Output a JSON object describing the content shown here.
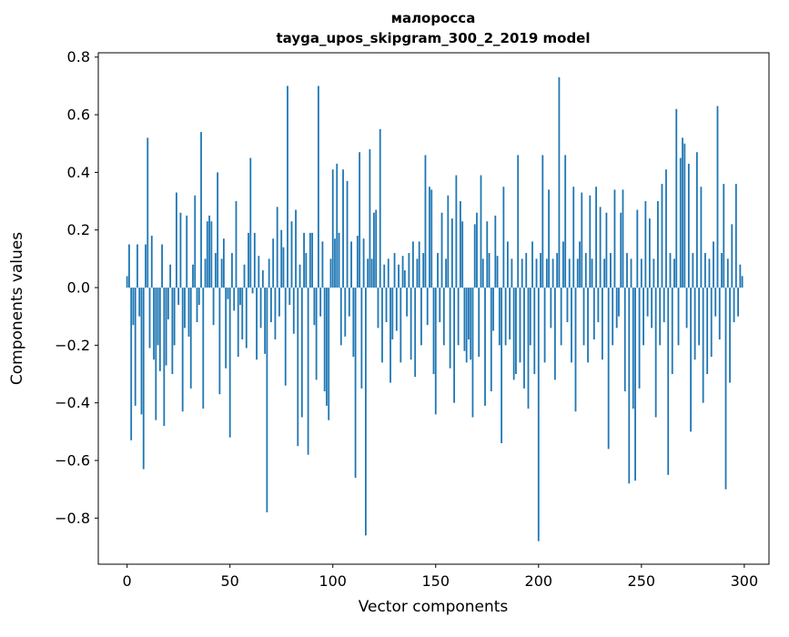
{
  "figure": {
    "title_line1": "малоросса",
    "title_line2": "tayga_upos_skipgram_300_2_2019 model",
    "bar_color": "#1f77b4",
    "spine_color": "#000000",
    "background_color": "#ffffff"
  },
  "chart_data": {
    "type": "bar",
    "title": "малоросса\ntayga_upos_skipgram_300_2_2019 model",
    "xlabel": "Vector components",
    "ylabel": "Components values",
    "grid": false,
    "legend": null,
    "xlim": [
      -14,
      312
    ],
    "ylim": [
      -0.96,
      0.815
    ],
    "x_ticks": [
      0,
      50,
      100,
      150,
      200,
      250,
      300
    ],
    "y_ticks": [
      -0.8,
      -0.6,
      -0.4,
      -0.2,
      0.0,
      0.2,
      0.4,
      0.6,
      0.8
    ],
    "values": [
      0.04,
      0.15,
      -0.53,
      -0.13,
      -0.41,
      0.15,
      -0.1,
      -0.44,
      -0.63,
      0.15,
      0.52,
      -0.21,
      0.18,
      -0.25,
      -0.46,
      -0.2,
      -0.29,
      0.15,
      -0.48,
      -0.27,
      -0.11,
      0.08,
      -0.3,
      -0.2,
      0.33,
      -0.06,
      0.26,
      -0.43,
      -0.14,
      0.25,
      -0.17,
      -0.35,
      0.08,
      0.32,
      -0.12,
      -0.06,
      0.54,
      -0.42,
      0.1,
      0.23,
      0.25,
      0.23,
      -0.13,
      0.12,
      0.4,
      -0.37,
      0.1,
      0.17,
      -0.28,
      -0.04,
      -0.52,
      0.12,
      -0.08,
      0.3,
      -0.24,
      -0.06,
      -0.18,
      0.08,
      -0.21,
      0.19,
      0.45,
      -0.02,
      0.19,
      -0.25,
      0.11,
      -0.14,
      0.06,
      -0.23,
      -0.78,
      0.1,
      -0.12,
      0.17,
      -0.18,
      0.28,
      -0.1,
      0.2,
      0.14,
      -0.34,
      0.7,
      -0.06,
      0.23,
      -0.16,
      0.27,
      -0.55,
      0.08,
      -0.45,
      0.19,
      0.12,
      -0.58,
      0.19,
      0.19,
      -0.13,
      -0.32,
      0.7,
      -0.1,
      0.16,
      -0.36,
      -0.41,
      -0.46,
      0.1,
      0.41,
      0.17,
      0.43,
      0.19,
      -0.2,
      0.41,
      -0.17,
      0.37,
      -0.1,
      0.16,
      -0.24,
      -0.66,
      0.18,
      0.47,
      -0.35,
      0.17,
      -0.86,
      0.1,
      0.48,
      0.1,
      0.26,
      0.27,
      -0.14,
      0.55,
      -0.26,
      0.08,
      -0.12,
      0.1,
      -0.33,
      -0.18,
      0.12,
      -0.15,
      0.08,
      -0.26,
      0.11,
      0.06,
      -0.1,
      0.12,
      -0.25,
      0.16,
      -0.31,
      0.1,
      0.16,
      -0.2,
      0.12,
      0.46,
      -0.13,
      0.35,
      0.34,
      -0.3,
      -0.44,
      0.12,
      -0.12,
      0.26,
      -0.2,
      0.1,
      0.32,
      -0.28,
      0.24,
      -0.4,
      0.39,
      -0.2,
      0.3,
      0.23,
      -0.22,
      -0.26,
      -0.18,
      -0.25,
      -0.45,
      0.22,
      0.26,
      -0.24,
      0.39,
      0.1,
      -0.41,
      0.23,
      0.12,
      -0.36,
      -0.15,
      0.25,
      0.11,
      -0.2,
      -0.54,
      0.35,
      -0.2,
      0.16,
      -0.18,
      0.1,
      -0.32,
      -0.3,
      0.46,
      -0.26,
      0.1,
      -0.35,
      0.12,
      -0.42,
      -0.2,
      0.16,
      -0.3,
      0.1,
      -0.88,
      0.12,
      0.46,
      -0.26,
      0.1,
      0.34,
      -0.14,
      0.1,
      -0.32,
      0.12,
      0.73,
      -0.2,
      0.16,
      0.46,
      -0.12,
      0.1,
      -0.26,
      0.35,
      -0.43,
      0.1,
      0.16,
      0.33,
      -0.2,
      0.12,
      -0.26,
      0.32,
      0.1,
      -0.18,
      0.35,
      -0.12,
      0.28,
      -0.25,
      0.1,
      0.26,
      -0.56,
      0.12,
      -0.2,
      0.34,
      -0.14,
      -0.1,
      0.26,
      0.34,
      -0.36,
      0.12,
      -0.68,
      0.1,
      -0.42,
      -0.67,
      0.27,
      -0.35,
      0.1,
      -0.2,
      0.3,
      -0.1,
      0.24,
      -0.14,
      0.1,
      -0.45,
      0.3,
      -0.2,
      0.36,
      -0.12,
      0.41,
      -0.65,
      0.12,
      -0.3,
      0.1,
      0.62,
      -0.2,
      0.45,
      0.52,
      0.5,
      -0.14,
      0.43,
      -0.5,
      0.12,
      -0.25,
      0.47,
      -0.2,
      0.35,
      -0.4,
      0.12,
      -0.3,
      0.1,
      -0.24,
      0.16,
      -0.1,
      0.63,
      -0.18,
      0.12,
      0.36,
      -0.7,
      0.1,
      -0.33,
      0.22,
      -0.12,
      0.36,
      -0.1,
      0.08,
      0.04
    ]
  }
}
